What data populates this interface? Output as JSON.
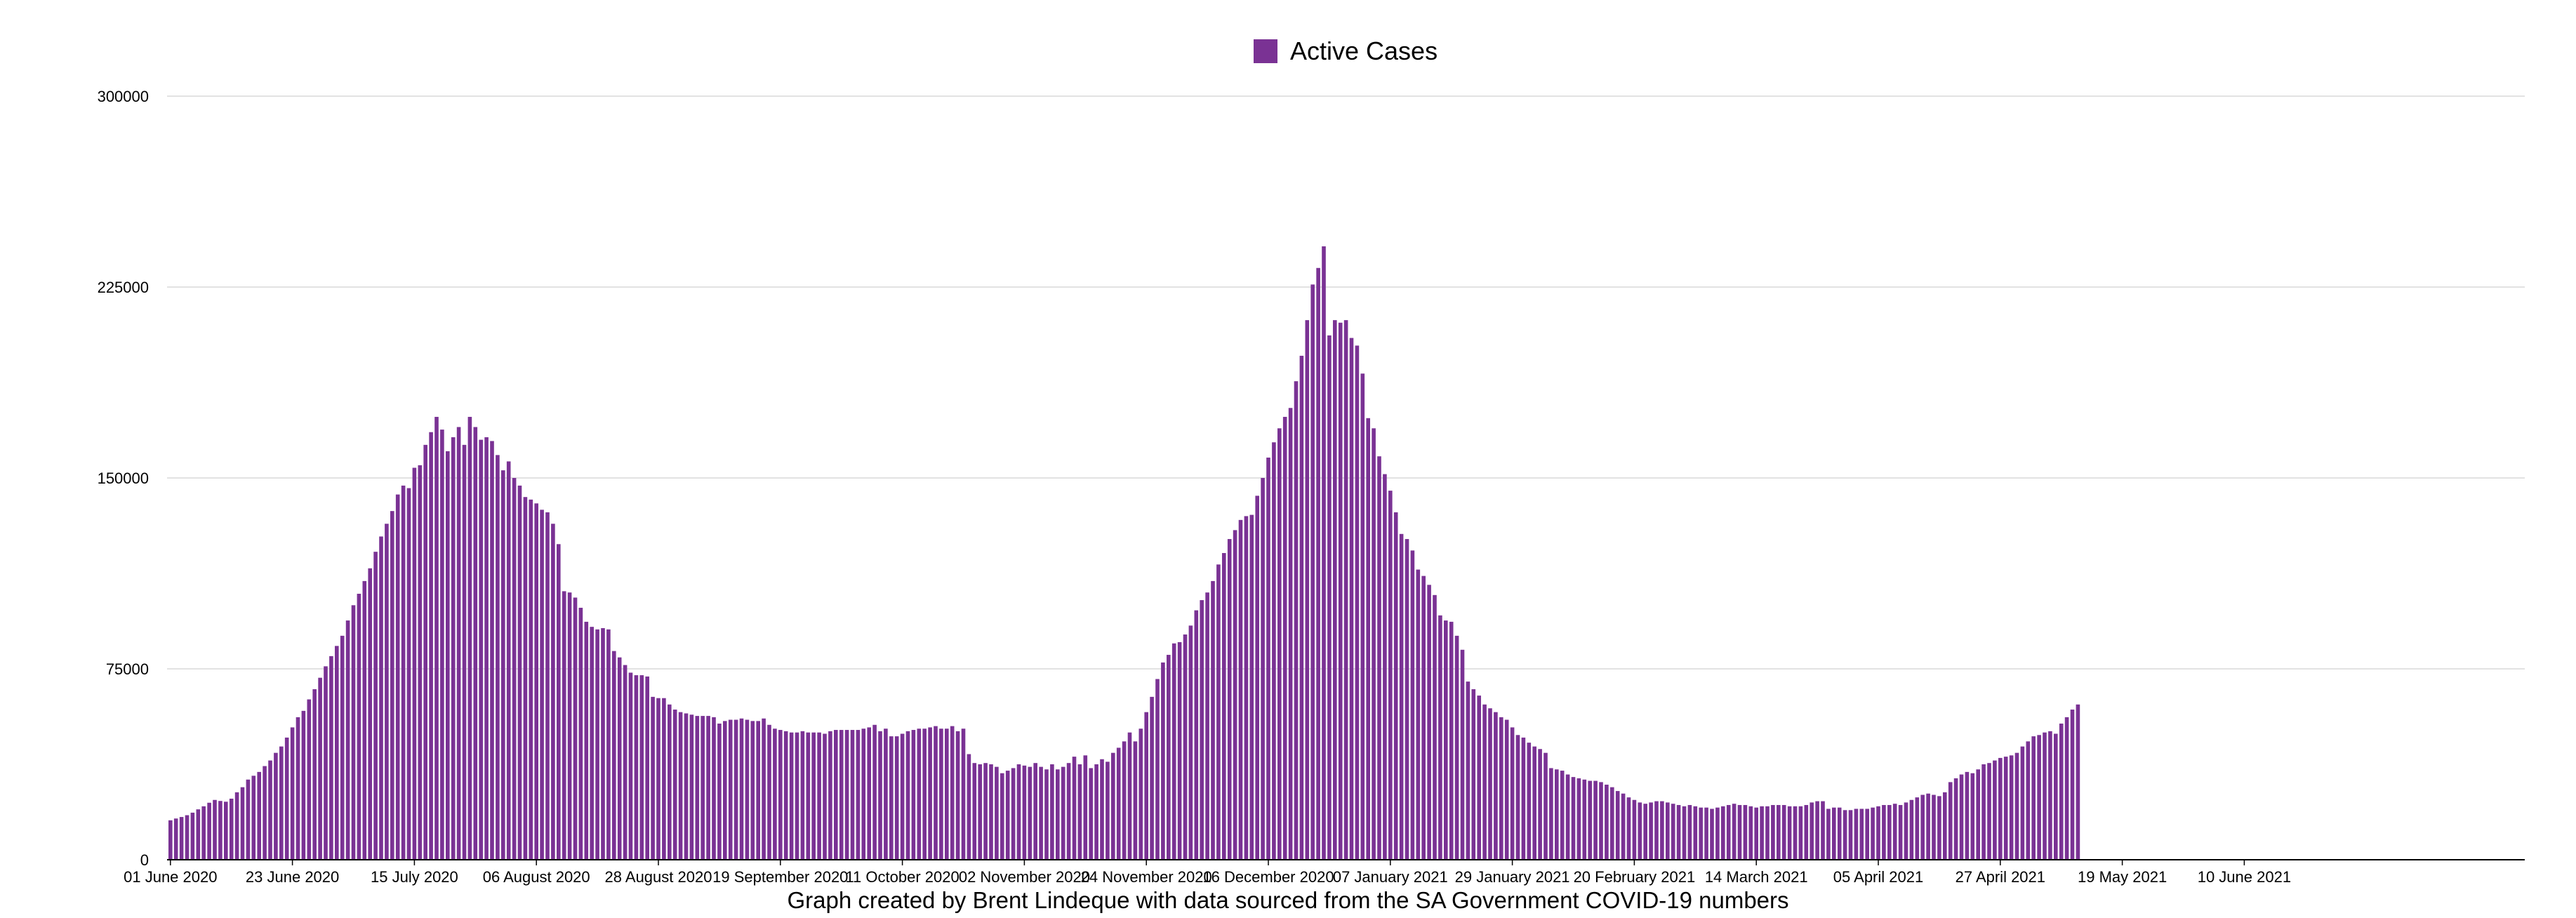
{
  "chart_data": {
    "type": "bar",
    "legend": [
      {
        "label": "Active Cases",
        "color": "#7a3294"
      }
    ],
    "legend_position": "top-center",
    "grid": true,
    "ylim": [
      0,
      300000
    ],
    "yticks": [
      "0",
      "75000",
      "150000",
      "225000",
      "300000"
    ],
    "xticks": [
      "01 June 2020",
      "23 June 2020",
      "15 July 2020",
      "06 August 2020",
      "28 August 2020",
      "19 September 2020",
      "11 October 2020",
      "02 November 2020",
      "24 November 2020",
      "16 December 2020",
      "07 January 2021",
      "29 January 2021",
      "20 February 2021",
      "14 March 2021",
      "05 April 2021",
      "27 April 2021",
      "19 May 2021",
      "10 June 2021"
    ],
    "caption": "Graph created by Brent Lindeque with data sourced from the SA Government COVID-19 numbers",
    "series": [
      {
        "name": "Active Cases",
        "start_date": "01 June 2020",
        "values": [
          15500,
          16200,
          16800,
          17500,
          18500,
          19800,
          21000,
          22400,
          23500,
          23100,
          22800,
          24000,
          26500,
          28500,
          31500,
          33000,
          34500,
          36800,
          39000,
          42000,
          44500,
          48000,
          52000,
          56000,
          58500,
          63000,
          67000,
          71500,
          76000,
          80000,
          84000,
          88000,
          94000,
          100000,
          104500,
          109500,
          114500,
          121000,
          127000,
          132000,
          137000,
          143500,
          147000,
          146000,
          154000,
          155000,
          163000,
          168000,
          174000,
          169000,
          160500,
          166000,
          170000,
          163000,
          174000,
          170000,
          165000,
          166000,
          164500,
          159000,
          153000,
          156500,
          150000,
          147000,
          142500,
          141500,
          140000,
          137500,
          136500,
          132000,
          124000,
          105500,
          105000,
          103000,
          99000,
          93500,
          91500,
          90500,
          91000,
          90500,
          82000,
          79500,
          76500,
          73500,
          72500,
          72500,
          72000,
          64000,
          63500,
          63500,
          61000,
          59000,
          58000,
          57500,
          57000,
          56500,
          56500,
          56500,
          56000,
          53500,
          54500,
          55000,
          55000,
          55500,
          55000,
          54500,
          54500,
          55500,
          53000,
          51500,
          51000,
          50500,
          50000,
          50000,
          50500,
          50000,
          50000,
          50000,
          49500,
          50500,
          51000,
          51000,
          51000,
          51000,
          51000,
          51500,
          52000,
          53000,
          50500,
          51500,
          48500,
          48500,
          49500,
          50500,
          51000,
          51500,
          51500,
          52000,
          52500,
          51500,
          51500,
          52500,
          50500,
          51500,
          41500,
          38000,
          37500,
          38000,
          37500,
          36500,
          34000,
          35000,
          36000,
          37500,
          37000,
          36500,
          38000,
          36500,
          35500,
          37500,
          35500,
          36500,
          38000,
          40500,
          37500,
          41000,
          36000,
          37500,
          39500,
          38500,
          42000,
          44000,
          46500,
          50000,
          46500,
          51500,
          58000,
          64000,
          71000,
          77500,
          80500,
          85000,
          85500,
          88500,
          92000,
          98000,
          102000,
          105000,
          109500,
          116000,
          120500,
          126000,
          129500,
          133500,
          135000,
          135500,
          143000,
          150000,
          158000,
          164000,
          169500,
          174000,
          177500,
          188000,
          198000,
          212000,
          226000,
          232500,
          241000,
          206000,
          212000,
          211000,
          212000,
          205000,
          202000,
          191000,
          173500,
          169500,
          158500,
          151500,
          145000,
          136500,
          128000,
          126000,
          121500,
          114000,
          111500,
          108000,
          104000,
          96000,
          94000,
          93500,
          88000,
          82500,
          70000,
          67000,
          64500,
          61000,
          59500,
          58000,
          56000,
          55000,
          52000,
          49000,
          48000,
          46000,
          44500,
          43500,
          42000,
          36000,
          35500,
          35000,
          33500,
          32500,
          32000,
          31500,
          31000,
          31000,
          30500,
          29500,
          28500,
          27000,
          26000,
          24500,
          23500,
          22500,
          22000,
          22500,
          23000,
          23000,
          22500,
          22000,
          21500,
          21000,
          21500,
          21000,
          20500,
          20500,
          20000,
          20500,
          21000,
          21500,
          22000,
          21500,
          21500,
          21000,
          20500,
          21000,
          21000,
          21500,
          21500,
          21500,
          21000,
          21000,
          21000,
          21500,
          22500,
          23000,
          23000,
          20000,
          20500,
          20500,
          19500,
          19500,
          20000,
          20000,
          20000,
          20500,
          21000,
          21500,
          21500,
          22000,
          21500,
          22500,
          23500,
          24500,
          25500,
          26000,
          25500,
          25000,
          26500,
          30500,
          32000,
          33500,
          34500,
          34000,
          35500,
          37500,
          38000,
          39000,
          40000,
          40500,
          41000,
          42000,
          44500,
          46500,
          48500,
          49000,
          50000,
          50500,
          49500,
          53500,
          56000,
          59000,
          61000
        ]
      }
    ]
  }
}
